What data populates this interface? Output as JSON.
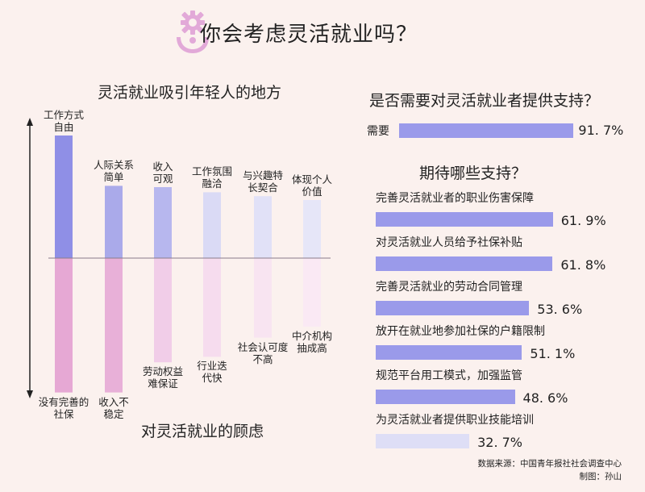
{
  "header": {
    "title": "你会考虑灵活就业吗？",
    "icon": "person-gear-icon"
  },
  "left_chart": {
    "title_top": "灵活就业吸引年轻人的地方",
    "title_bottom": "对灵活就业的顾虑",
    "attractions": [
      {
        "label": "工作方式\n自由",
        "value": 95
      },
      {
        "label": "人际关系\n简单",
        "value": 56
      },
      {
        "label": "收入\n可观",
        "value": 55
      },
      {
        "label": "工作氛围\n融洽",
        "value": 51
      },
      {
        "label": "与兴趣特\n长契合",
        "value": 48
      },
      {
        "label": "体现个人\n价值",
        "value": 45
      }
    ],
    "concerns": [
      {
        "label": "没有完善的\n社保",
        "value": 98
      },
      {
        "label": "收入不\n稳定",
        "value": 98
      },
      {
        "label": "劳动权益\n难保证",
        "value": 76
      },
      {
        "label": "行业迭\n代快",
        "value": 72
      },
      {
        "label": "社会认可度\n不高",
        "value": 58
      },
      {
        "label": "中介机构\n抽成高",
        "value": 50
      }
    ]
  },
  "right_chart": {
    "title_need": "是否需要对灵活就业者提供支持？",
    "need": {
      "label": "需要",
      "value": 91.7,
      "value_text": "91. 7%"
    },
    "title_expect": "期待哪些支持？",
    "supports": [
      {
        "label": "完善灵活就业者的职业伤害保障",
        "value": 61.9,
        "value_text": "61. 9%"
      },
      {
        "label": "对灵活就业人员给予社保补贴",
        "value": 61.8,
        "value_text": "61. 8%"
      },
      {
        "label": "完善灵活就业的劳动合同管理",
        "value": 53.6,
        "value_text": "53. 6%"
      },
      {
        "label": "放开在就业地参加社保的户籍限制",
        "value": 51.1,
        "value_text": "51. 1%"
      },
      {
        "label": "规范平台用工模式，加强监管",
        "value": 48.6,
        "value_text": "48. 6%"
      },
      {
        "label": "为灵活就业者提供职业技能培训",
        "value": 32.7,
        "value_text": "32. 7%"
      }
    ]
  },
  "chart_data": [
    {
      "type": "bar",
      "title": "灵活就业吸引年轻人的地方",
      "categories": [
        "工作方式自由",
        "人际关系简单",
        "收入可观",
        "工作氛围融洽",
        "与兴趣特长契合",
        "体现个人价值"
      ],
      "values": [
        95,
        56,
        55,
        51,
        48,
        45
      ]
    },
    {
      "type": "bar",
      "title": "对灵活就业的顾虑",
      "categories": [
        "没有完善的社保",
        "收入不稳定",
        "劳动权益难保证",
        "行业迭代快",
        "社会认可度不高",
        "中介机构抽成高"
      ],
      "values": [
        98,
        98,
        76,
        72,
        58,
        50
      ]
    },
    {
      "type": "bar",
      "title": "期待哪些支持？",
      "categories": [
        "完善灵活就业者的职业伤害保障",
        "对灵活就业人员给予社保补贴",
        "完善灵活就业的劳动合同管理",
        "放开在就业地参加社保的户籍限制",
        "规范平台用工模式，加强监管",
        "为灵活就业者提供职业技能培训"
      ],
      "values": [
        61.9,
        61.8,
        53.6,
        51.1,
        48.6,
        32.7
      ]
    }
  ],
  "footer": {
    "source": "数据来源：中国青年报社社会调查中心",
    "credit": "制图：孙山"
  },
  "colors": {
    "background": "#fbf1ee",
    "attraction_bars": [
      "#8f8fe6",
      "#aaaaea",
      "#b7b7ee",
      "#dadaf5",
      "#e1e1f7",
      "#e6e6f8"
    ],
    "concern_bars": [
      "#e6a8d4",
      "#e8b0d8",
      "#f1cde8",
      "#f6dcee",
      "#f8e4f1",
      "#fae9f4"
    ],
    "support_bar": "#9a9aea",
    "support_bar_light": "#dedef6",
    "icon": "#e2a9d8"
  }
}
